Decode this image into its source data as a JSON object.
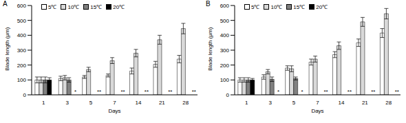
{
  "chart_data": [
    {
      "type": "bar",
      "title": "A",
      "x_label": "Days",
      "y_label": "Blade length (μm)",
      "categories": [
        "1",
        "3",
        "5",
        "7",
        "14",
        "21",
        "28"
      ],
      "ylim": [
        0,
        600
      ],
      "yticks": [
        0,
        100,
        200,
        300,
        400,
        500,
        600
      ],
      "legend": "upper left",
      "series": [
        {
          "name": "5℃",
          "color": "#ffffff",
          "values": [
            100,
            110,
            120,
            130,
            160,
            205,
            240
          ],
          "errors": [
            20,
            15,
            10,
            10,
            20,
            20,
            25
          ]
        },
        {
          "name": "10℃",
          "color": "#d9d9d9",
          "values": [
            100,
            115,
            170,
            230,
            280,
            370,
            445
          ],
          "errors": [
            20,
            15,
            15,
            20,
            25,
            30,
            35
          ]
        },
        {
          "name": "15℃",
          "color": "#808080",
          "values": [
            100,
            100,
            null,
            null,
            null,
            null,
            null
          ],
          "errors": [
            20,
            15,
            null,
            null,
            null,
            null,
            null
          ]
        },
        {
          "name": "20℃",
          "color": "#000000",
          "values": [
            100,
            null,
            null,
            null,
            null,
            null,
            null
          ],
          "errors": [
            15,
            null,
            null,
            null,
            null,
            null,
            null
          ]
        }
      ],
      "annotations": [
        {
          "category": "3",
          "text": "*"
        },
        {
          "category": "5",
          "text": "**"
        },
        {
          "category": "7",
          "text": "**"
        },
        {
          "category": "14",
          "text": "**"
        },
        {
          "category": "21",
          "text": "**"
        },
        {
          "category": "28",
          "text": "**"
        }
      ]
    },
    {
      "type": "bar",
      "title": "B",
      "x_label": "Days",
      "y_label": "Blade length (μm)",
      "categories": [
        "1",
        "3",
        "5",
        "7",
        "14",
        "21",
        "28"
      ],
      "ylim": [
        0,
        600
      ],
      "yticks": [
        0,
        100,
        200,
        300,
        400,
        500,
        600
      ],
      "legend": "upper left",
      "series": [
        {
          "name": "5℃",
          "color": "#ffffff",
          "values": [
            100,
            120,
            180,
            220,
            270,
            350,
            415
          ],
          "errors": [
            15,
            15,
            15,
            20,
            20,
            25,
            30
          ]
        },
        {
          "name": "10℃",
          "color": "#d9d9d9",
          "values": [
            100,
            155,
            175,
            240,
            330,
            490,
            545
          ],
          "errors": [
            15,
            15,
            20,
            20,
            25,
            30,
            35
          ]
        },
        {
          "name": "15℃",
          "color": "#808080",
          "values": [
            100,
            105,
            110,
            null,
            null,
            null,
            null
          ],
          "errors": [
            15,
            15,
            10,
            null,
            null,
            null,
            null
          ]
        },
        {
          "name": "20℃",
          "color": "#000000",
          "values": [
            100,
            null,
            null,
            null,
            null,
            null,
            null
          ],
          "errors": [
            10,
            null,
            null,
            null,
            null,
            null,
            null
          ]
        }
      ],
      "annotations": [
        {
          "category": "3",
          "text": "*"
        },
        {
          "category": "5",
          "text": "*"
        },
        {
          "category": "7",
          "text": "**"
        },
        {
          "category": "14",
          "text": "**"
        },
        {
          "category": "21",
          "text": "**"
        },
        {
          "category": "28",
          "text": "**"
        }
      ]
    }
  ]
}
